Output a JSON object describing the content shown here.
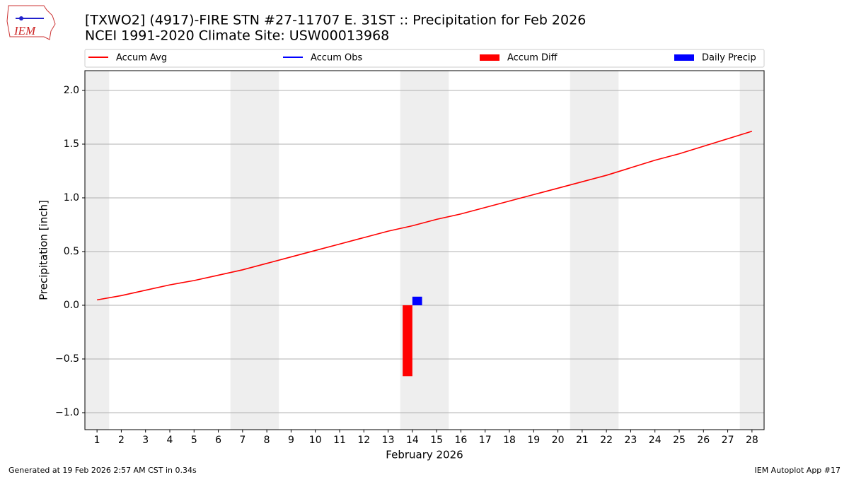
{
  "logo_text": "IEM",
  "chart_data": {
    "type": "line",
    "title": "[TXWO2] (4917)-FIRE STN #27-11707 E. 31ST :: Precipitation for Feb 2026",
    "subtitle": "NCEI 1991-2020 Climate Site: USW00013968",
    "xlabel": "February 2026",
    "ylabel": "Precipitation [inch]",
    "x": [
      1,
      2,
      3,
      4,
      5,
      6,
      7,
      8,
      9,
      10,
      11,
      12,
      13,
      14,
      15,
      16,
      17,
      18,
      19,
      20,
      21,
      22,
      23,
      24,
      25,
      26,
      27,
      28
    ],
    "xlim": [
      0.5,
      28.5
    ],
    "xticks": [
      1,
      2,
      3,
      4,
      5,
      6,
      7,
      8,
      9,
      10,
      11,
      12,
      13,
      14,
      15,
      16,
      17,
      18,
      19,
      20,
      21,
      22,
      23,
      24,
      25,
      26,
      27,
      28
    ],
    "ylim": [
      -1.158,
      2.184
    ],
    "yticks": [
      {
        "value": -1.0,
        "label": "−1.0"
      },
      {
        "value": -0.5,
        "label": "−0.5"
      },
      {
        "value": 0,
        "label": "0.0"
      },
      {
        "value": 0.5,
        "label": "0.5"
      },
      {
        "value": 1.0,
        "label": "1.0"
      },
      {
        "value": 1.5,
        "label": "1.5"
      },
      {
        "value": 2.0,
        "label": "2.0"
      }
    ],
    "grid": true,
    "shaded_ranges": [
      [
        0.5,
        1.5
      ],
      [
        6.5,
        8.5
      ],
      [
        13.5,
        15.5
      ],
      [
        20.5,
        22.5
      ],
      [
        27.5,
        28.5
      ]
    ],
    "shade_color": "#eeeeee",
    "legend_position": "top",
    "series": [
      {
        "name": "Accum Avg",
        "type": "line",
        "color": "#ff0000",
        "values": [
          0.05,
          0.09,
          0.14,
          0.19,
          0.23,
          0.28,
          0.33,
          0.39,
          0.45,
          0.51,
          0.57,
          0.63,
          0.69,
          0.74,
          0.8,
          0.85,
          0.91,
          0.97,
          1.03,
          1.09,
          1.15,
          1.21,
          1.28,
          1.35,
          1.41,
          1.48,
          1.55,
          1.62
        ]
      },
      {
        "name": "Accum Obs",
        "type": "line",
        "color": "#0000ff",
        "values": [
          null,
          null,
          null,
          null,
          null,
          null,
          null,
          null,
          null,
          null,
          null,
          null,
          null,
          0.08,
          null,
          null,
          null,
          null,
          null,
          null,
          null,
          null,
          null,
          null,
          null,
          null,
          null,
          null
        ]
      },
      {
        "name": "Accum Diff",
        "type": "bar",
        "color": "#ff0000",
        "values": [
          null,
          null,
          null,
          null,
          null,
          null,
          null,
          null,
          null,
          null,
          null,
          null,
          null,
          -0.66,
          null,
          null,
          null,
          null,
          null,
          null,
          null,
          null,
          null,
          null,
          null,
          null,
          null,
          null
        ]
      },
      {
        "name": "Daily Precip",
        "type": "bar",
        "color": "#0000ff",
        "values": [
          null,
          null,
          null,
          null,
          null,
          null,
          null,
          null,
          null,
          null,
          null,
          null,
          null,
          0.08,
          null,
          null,
          null,
          null,
          null,
          null,
          null,
          null,
          null,
          null,
          null,
          null,
          null,
          null
        ]
      }
    ]
  },
  "footer": {
    "left": "Generated at 19 Feb 2026 2:57 AM CST in 0.34s",
    "right": "IEM Autoplot App #17"
  }
}
